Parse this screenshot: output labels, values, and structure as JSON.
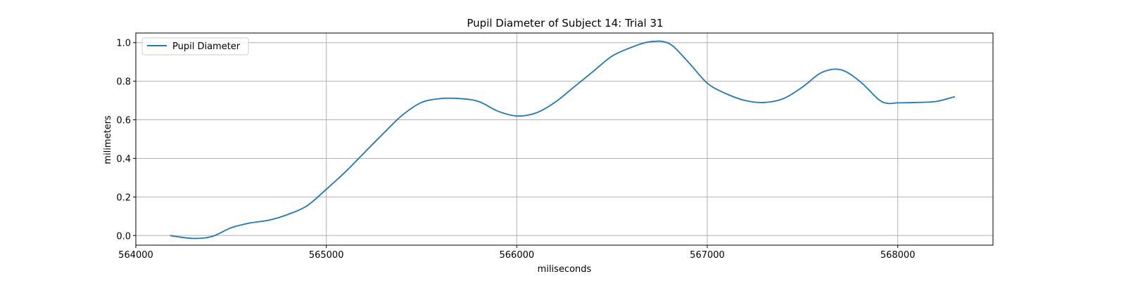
{
  "chart_data": {
    "type": "line",
    "title": "Pupil Diameter of Subject 14: Trial 31",
    "xlabel": "miliseconds",
    "ylabel": "milimeters",
    "xlim": [
      564000,
      568500
    ],
    "ylim": [
      -0.05,
      1.05
    ],
    "xticks": [
      564000,
      565000,
      566000,
      567000,
      568000
    ],
    "xtick_labels": [
      "564000",
      "565000",
      "566000",
      "567000",
      "568000"
    ],
    "yticks": [
      0.0,
      0.2,
      0.4,
      0.6,
      0.8,
      1.0
    ],
    "ytick_labels": [
      "0.0",
      "0.2",
      "0.4",
      "0.6",
      "0.8",
      "1.0"
    ],
    "grid": true,
    "legend_position": "top-left",
    "series": [
      {
        "name": "Pupil Diameter",
        "color": "#1f77b4",
        "x": [
          564180,
          564300,
          564400,
          564500,
          564600,
          564700,
          564800,
          564900,
          565000,
          565100,
          565200,
          565300,
          565400,
          565500,
          565600,
          565700,
          565800,
          565900,
          566000,
          566100,
          566200,
          566300,
          566400,
          566500,
          566600,
          566700,
          566800,
          566900,
          567000,
          567100,
          567200,
          567300,
          567400,
          567500,
          567600,
          567700,
          567800,
          567900,
          567950,
          568000,
          568100,
          568200,
          568300
        ],
        "y": [
          0.0,
          -0.015,
          -0.005,
          0.04,
          0.065,
          0.08,
          0.11,
          0.155,
          0.24,
          0.33,
          0.43,
          0.53,
          0.625,
          0.69,
          0.71,
          0.71,
          0.695,
          0.645,
          0.62,
          0.635,
          0.69,
          0.77,
          0.85,
          0.93,
          0.975,
          1.005,
          0.995,
          0.9,
          0.79,
          0.735,
          0.7,
          0.69,
          0.71,
          0.77,
          0.845,
          0.86,
          0.8,
          0.705,
          0.685,
          0.688,
          0.69,
          0.695,
          0.72
        ]
      }
    ]
  }
}
